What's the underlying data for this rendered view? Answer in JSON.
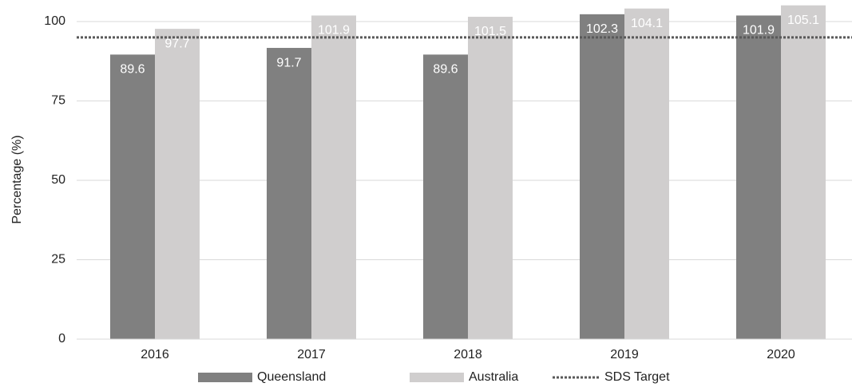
{
  "chart_data": {
    "type": "bar",
    "y_label": "Percentage (%)",
    "categories": [
      "2016",
      "2017",
      "2018",
      "2019",
      "2020"
    ],
    "series": [
      {
        "name": "Queensland",
        "color": "#808080",
        "values": [
          89.6,
          91.7,
          89.6,
          102.3,
          101.9
        ]
      },
      {
        "name": "Australia",
        "color": "#d0cece",
        "values": [
          97.7,
          101.9,
          101.5,
          104.1,
          105.1
        ]
      }
    ],
    "target": {
      "name": "SDS Target",
      "value": 95,
      "color": "#595959"
    },
    "ylim": [
      0,
      106
    ],
    "yticks": [
      0,
      25,
      50,
      75,
      100
    ],
    "grid": true,
    "legend": "bottom"
  }
}
